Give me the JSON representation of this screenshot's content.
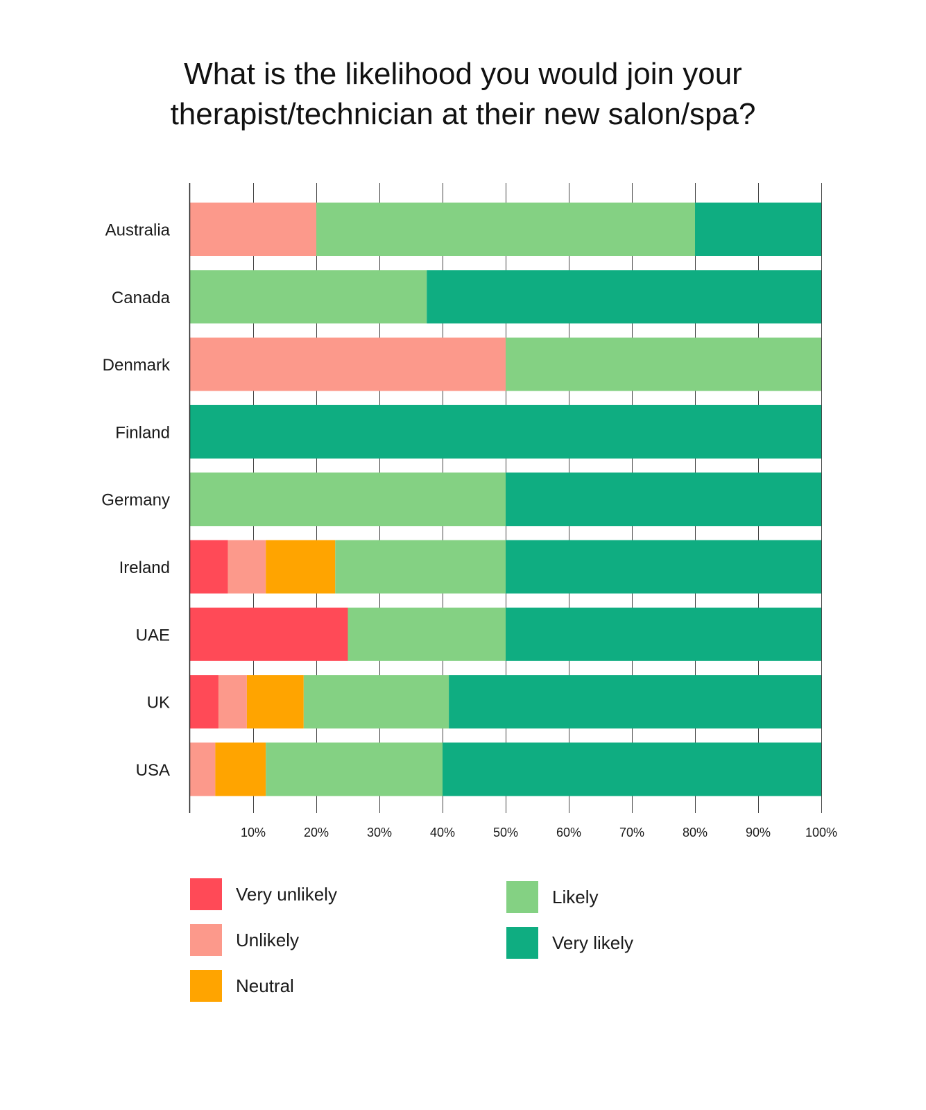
{
  "chart_data": {
    "type": "bar",
    "orientation": "horizontal",
    "stacked": true,
    "title": "What is the likelihood you would join your therapist/technician at their new salon/spa?",
    "title_lines": [
      "What is the likelihood you would join your",
      "therapist/technician at their new salon/spa?"
    ],
    "categories": [
      "Australia",
      "Canada",
      "Denmark",
      "Finland",
      "Germany",
      "Ireland",
      "UAE",
      "UK",
      "USA"
    ],
    "series": [
      {
        "name": "Very unlikely",
        "color": "#ff4a57",
        "values": [
          0,
          0,
          0,
          0,
          0,
          6,
          25,
          4.5,
          0
        ]
      },
      {
        "name": "Unlikely",
        "color": "#fc998b",
        "values": [
          20,
          0,
          50,
          0,
          0,
          6,
          0,
          4.5,
          4
        ]
      },
      {
        "name": "Neutral",
        "color": "#ffa400",
        "values": [
          0,
          0,
          0,
          0,
          0,
          11,
          0,
          9,
          8
        ]
      },
      {
        "name": "Likely",
        "color": "#84d183",
        "values": [
          60,
          37.5,
          50,
          0,
          50,
          27,
          25,
          23,
          28
        ]
      },
      {
        "name": "Very likely",
        "color": "#0fad81",
        "values": [
          20,
          62.5,
          0,
          100,
          50,
          50,
          50,
          59,
          60
        ]
      }
    ],
    "xlim": [
      0,
      100
    ],
    "x_ticks": [
      "10%",
      "20%",
      "30%",
      "40%",
      "50%",
      "60%",
      "70%",
      "80%",
      "90%",
      "100%"
    ],
    "grid": true,
    "legend_position": "bottom"
  }
}
